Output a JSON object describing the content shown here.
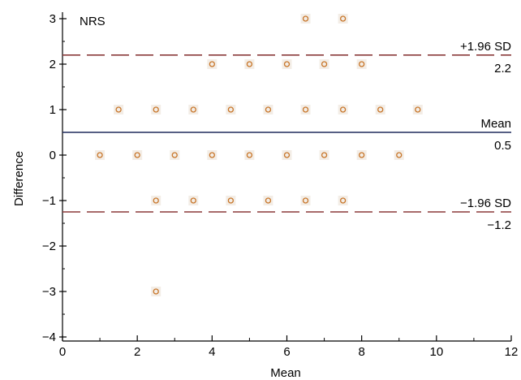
{
  "chart_data": {
    "type": "scatter",
    "title": "NRS",
    "xlabel": "Mean",
    "ylabel": "Difference",
    "xlim": [
      0,
      12
    ],
    "ylim": [
      -4,
      3
    ],
    "xticks": [
      0,
      2,
      4,
      6,
      8,
      10,
      12
    ],
    "yticks": [
      -4,
      -3,
      -2,
      -1,
      0,
      1,
      2,
      3
    ],
    "grid": false,
    "points": [
      {
        "x": 6.5,
        "y": 3
      },
      {
        "x": 7.5,
        "y": 3
      },
      {
        "x": 4,
        "y": 2
      },
      {
        "x": 5,
        "y": 2
      },
      {
        "x": 6,
        "y": 2
      },
      {
        "x": 7,
        "y": 2
      },
      {
        "x": 8,
        "y": 2
      },
      {
        "x": 1.5,
        "y": 1
      },
      {
        "x": 2.5,
        "y": 1
      },
      {
        "x": 3.5,
        "y": 1
      },
      {
        "x": 4.5,
        "y": 1
      },
      {
        "x": 5.5,
        "y": 1
      },
      {
        "x": 6.5,
        "y": 1
      },
      {
        "x": 7.5,
        "y": 1
      },
      {
        "x": 8.5,
        "y": 1
      },
      {
        "x": 9.5,
        "y": 1
      },
      {
        "x": 1,
        "y": 0
      },
      {
        "x": 2,
        "y": 0
      },
      {
        "x": 3,
        "y": 0
      },
      {
        "x": 4,
        "y": 0
      },
      {
        "x": 5,
        "y": 0
      },
      {
        "x": 6,
        "y": 0
      },
      {
        "x": 7,
        "y": 0
      },
      {
        "x": 8,
        "y": 0
      },
      {
        "x": 9,
        "y": 0
      },
      {
        "x": 2.5,
        "y": -1
      },
      {
        "x": 3.5,
        "y": -1
      },
      {
        "x": 4.5,
        "y": -1
      },
      {
        "x": 5.5,
        "y": -1
      },
      {
        "x": 6.5,
        "y": -1
      },
      {
        "x": 7.5,
        "y": -1
      },
      {
        "x": 2.5,
        "y": -3
      }
    ],
    "reference_lines": [
      {
        "label": "+1.96 SD",
        "value": 2.2,
        "value_label": "2.2",
        "style": "dashed",
        "color": "#8b3a3a"
      },
      {
        "label": "Mean",
        "value": 0.5,
        "value_label": "0.5",
        "style": "solid",
        "color": "#1f2a5c"
      },
      {
        "label": "−1.96 SD",
        "value": -1.25,
        "value_label": "−1.2",
        "style": "dashed",
        "color": "#8b3a3a"
      }
    ],
    "marker_color": "#c8762a"
  }
}
